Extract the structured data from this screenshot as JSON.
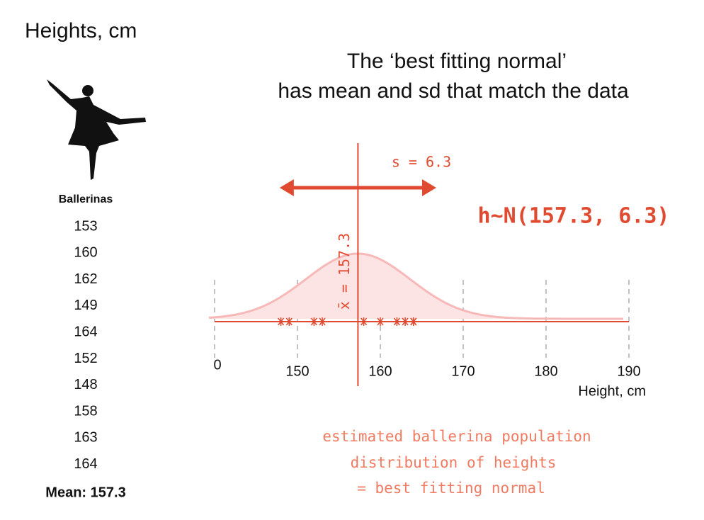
{
  "title": "Heights, cm",
  "heading": [
    "The ‘best fitting normal’",
    "has mean and sd that match the data"
  ],
  "table": {
    "header": "Ballerinas",
    "footer": "Mean: 157.3"
  },
  "chart_data": {
    "type": "strip",
    "values": [
      153,
      160,
      162,
      149,
      164,
      152,
      148,
      158,
      163,
      164
    ],
    "xlim": [
      140,
      190
    ],
    "xticks": [
      {
        "value": 140,
        "label": "0"
      },
      150,
      160,
      170,
      180,
      190
    ],
    "xlabel": "Height, cm",
    "mean": 157.3,
    "sd": 6.3,
    "sd_label": "s = 6.3",
    "mean_label": "x̄ = 157.3",
    "model_label": "h~N(157.3, 6.3)",
    "note": [
      "estimated ballerina population",
      "distribution of heights",
      "= best fitting normal"
    ]
  }
}
